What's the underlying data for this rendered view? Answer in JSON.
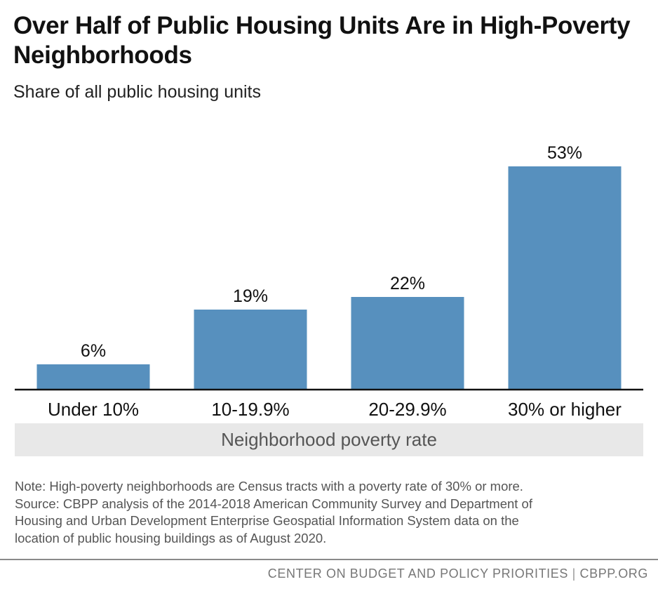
{
  "header": {
    "title": "Over Half of Public Housing Units Are in High-Poverty Neighborhoods",
    "subtitle": "Share of all public housing units"
  },
  "chart_data": {
    "type": "bar",
    "categories": [
      "Under 10%",
      "10-19.9%",
      "20-29.9%",
      "30% or higher"
    ],
    "values": [
      6,
      19,
      22,
      53
    ],
    "value_labels": [
      "6%",
      "19%",
      "22%",
      "53%"
    ],
    "xlabel": "Neighborhood poverty rate",
    "ylabel": "",
    "ylim": [
      0,
      60
    ],
    "grid": false,
    "legend": "none",
    "bar_color": "#5790be",
    "axis_color": "#111111"
  },
  "notes": {
    "lines": [
      "Note: High-poverty neighborhoods are Census tracts with a poverty rate of 30% or more.",
      "Source: CBPP analysis of the 2014-2018 American Community Survey and Department of",
      "Housing and Urban Development Enterprise Geospatial Information System data on the",
      "location of public housing buildings as of August 2020."
    ]
  },
  "footer": {
    "org": "CENTER ON BUDGET AND POLICY PRIORITIES",
    "separator": "|",
    "site": "CBPP.ORG"
  }
}
